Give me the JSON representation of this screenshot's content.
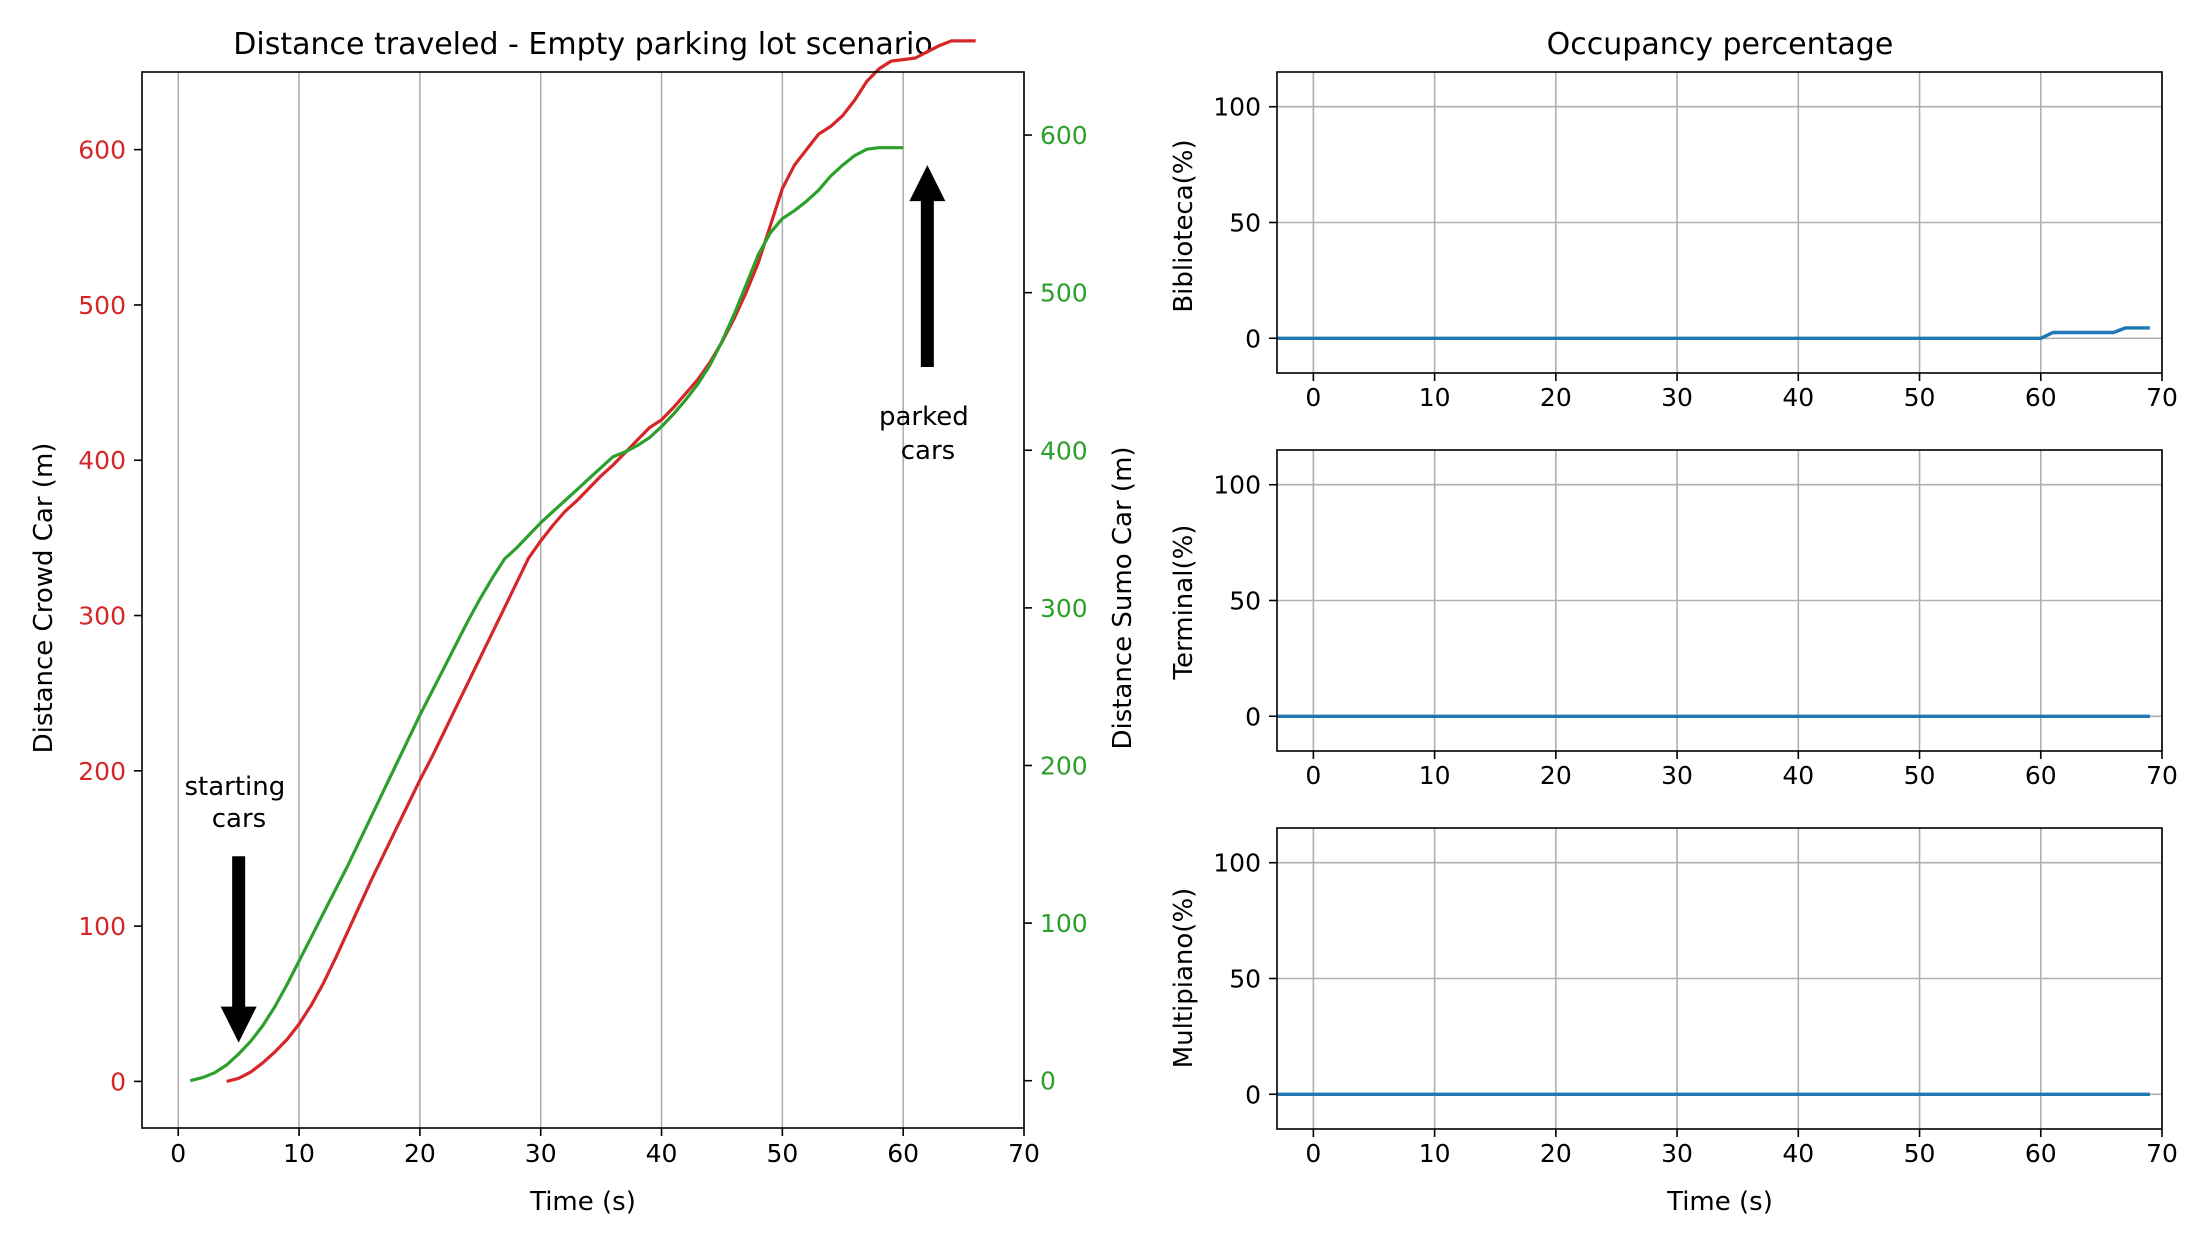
{
  "colors": {
    "crowd": "#d62728",
    "sumo": "#2ca02c",
    "occupancy": "#1f77b4",
    "grid": "#b0b0b0",
    "arrow": "#000000"
  },
  "chart_data": [
    {
      "type": "line",
      "title": "Distance traveled - Empty parking lot scenario",
      "xlabel": "Time (s)",
      "ylabel": "Distance Crowd Car (m)",
      "ylabel_right": "Distance Sumo Car (m)",
      "xlim": [
        -3,
        70
      ],
      "ylim": [
        -30,
        650
      ],
      "ylim_right": [
        -30,
        640
      ],
      "xticks": [
        0,
        10,
        20,
        30,
        40,
        50,
        60,
        70
      ],
      "yticks": [
        0,
        100,
        200,
        300,
        400,
        500,
        600
      ],
      "yticks_right": [
        0,
        100,
        200,
        300,
        400,
        500,
        600
      ],
      "grid": "x",
      "series": [
        {
          "axis": "left",
          "color": "#d62728",
          "x": [
            4,
            5,
            6,
            7,
            8,
            9,
            10,
            11,
            12,
            13,
            14,
            15,
            16,
            17,
            18,
            19,
            20,
            21,
            22,
            23,
            24,
            25,
            26,
            27,
            28,
            29,
            30,
            31,
            32,
            33,
            34,
            35,
            36,
            37,
            38,
            39,
            40,
            41,
            42,
            43,
            44,
            45,
            46,
            47,
            48,
            49,
            50,
            51,
            52,
            53,
            54,
            55,
            56,
            57,
            58,
            59,
            60,
            61,
            62,
            63,
            64,
            65,
            66
          ],
          "y": [
            0,
            2,
            6,
            12,
            19,
            27,
            37,
            49,
            63,
            79,
            96,
            113,
            130,
            146,
            162,
            178,
            194,
            209,
            225,
            241,
            257,
            273,
            289,
            305,
            321,
            337,
            348,
            358,
            367,
            374,
            382,
            390,
            397,
            405,
            413,
            421,
            426,
            434,
            443,
            452,
            463,
            476,
            491,
            508,
            527,
            551,
            575,
            590,
            600,
            610,
            615,
            622,
            632,
            644,
            652,
            657,
            658,
            659,
            663,
            667,
            670,
            670,
            670
          ]
        },
        {
          "axis": "right",
          "color": "#2ca02c",
          "x": [
            1,
            2,
            3,
            4,
            5,
            6,
            7,
            8,
            9,
            10,
            11,
            12,
            13,
            14,
            15,
            16,
            17,
            18,
            19,
            20,
            21,
            22,
            23,
            24,
            25,
            26,
            27,
            28,
            29,
            30,
            31,
            32,
            33,
            34,
            35,
            36,
            37,
            38,
            39,
            40,
            41,
            42,
            43,
            44,
            45,
            46,
            47,
            48,
            49,
            50,
            51,
            52,
            53,
            54,
            55,
            56,
            57,
            58,
            59,
            60
          ],
          "y": [
            0,
            2,
            5,
            10,
            17,
            25,
            35,
            47,
            61,
            76,
            91,
            106,
            121,
            136,
            152,
            168,
            184,
            200,
            216,
            232,
            247,
            262,
            277,
            292,
            306,
            319,
            331,
            338,
            346,
            354,
            361,
            368,
            375,
            382,
            389,
            396,
            399,
            403,
            408,
            415,
            423,
            432,
            442,
            454,
            469,
            486,
            505,
            524,
            538,
            547,
            552,
            558,
            565,
            574,
            581,
            587,
            591,
            592,
            592,
            592
          ]
        }
      ],
      "annotations": [
        {
          "text": "starting\ncars",
          "arrow": "down",
          "x": 5,
          "y_from": 145,
          "y_to": 25
        },
        {
          "text": "parked\ncars",
          "arrow": "up",
          "x": 62,
          "y_from": 460,
          "y_to": 590
        }
      ]
    },
    {
      "type": "line",
      "title": "Occupancy percentage",
      "ylabel": "Biblioteca(%)",
      "xlim": [
        -3,
        70
      ],
      "ylim": [
        -15,
        115
      ],
      "xticks": [
        0,
        10,
        20,
        30,
        40,
        50,
        60,
        70
      ],
      "yticks": [
        0,
        50,
        100
      ],
      "grid": "both",
      "series": [
        {
          "color": "#1f77b4",
          "x": [
            -3,
            60,
            61,
            66,
            67,
            69
          ],
          "y": [
            0,
            0,
            2.5,
            2.5,
            4.5,
            4.5
          ]
        }
      ]
    },
    {
      "type": "line",
      "ylabel": "Terminal(%)",
      "xlim": [
        -3,
        70
      ],
      "ylim": [
        -15,
        115
      ],
      "xticks": [
        0,
        10,
        20,
        30,
        40,
        50,
        60,
        70
      ],
      "yticks": [
        0,
        50,
        100
      ],
      "grid": "both",
      "series": [
        {
          "color": "#1f77b4",
          "x": [
            -3,
            69
          ],
          "y": [
            0,
            0
          ]
        }
      ]
    },
    {
      "type": "line",
      "xlabel": "Time (s)",
      "ylabel": "Multipiano(%)",
      "xlim": [
        -3,
        70
      ],
      "ylim": [
        -15,
        115
      ],
      "xticks": [
        0,
        10,
        20,
        30,
        40,
        50,
        60,
        70
      ],
      "yticks": [
        0,
        50,
        100
      ],
      "grid": "both",
      "series": [
        {
          "color": "#1f77b4",
          "x": [
            -3,
            69
          ],
          "y": [
            0,
            0
          ]
        }
      ]
    }
  ]
}
